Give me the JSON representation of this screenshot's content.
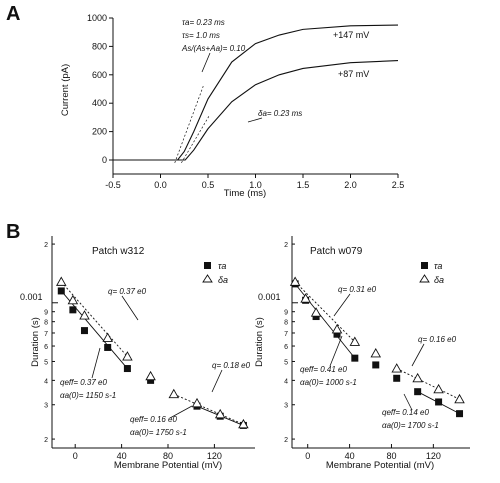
{
  "chart_data": [
    {
      "panel": "A",
      "type": "line",
      "xlabel": "Time (ms)",
      "ylabel": "Current (pA)",
      "xlim": [
        -0.5,
        2.5
      ],
      "ylim": [
        0,
        1000
      ],
      "x_ticks": [
        "-0.5",
        "0.0",
        "0.5",
        "1.0",
        "1.5",
        "2.0",
        "2.5"
      ],
      "y_ticks": [
        "0",
        "200",
        "400",
        "600",
        "800",
        "1000"
      ],
      "series": [
        {
          "name": "+147 mV",
          "x": [
            -0.5,
            0.0,
            0.18,
            0.25,
            0.35,
            0.5,
            0.75,
            1.0,
            1.25,
            1.5,
            2.0,
            2.5
          ],
          "values": [
            0,
            0,
            0,
            60,
            200,
            430,
            690,
            820,
            880,
            920,
            945,
            950
          ]
        },
        {
          "name": "+87 mV",
          "x": [
            -0.5,
            0.0,
            0.26,
            0.35,
            0.5,
            0.75,
            1.0,
            1.25,
            1.5,
            2.0,
            2.5
          ],
          "values": [
            0,
            0,
            0,
            70,
            220,
            410,
            530,
            600,
            645,
            685,
            700
          ]
        }
      ],
      "annotations": {
        "tau_a": "τa= 0.23 ms",
        "tau_s": "τs= 1.0 ms",
        "ratio": "As/(As+Aa)= 0.10",
        "delta": "δa= 0.23 ms"
      }
    },
    {
      "panel": "B",
      "title": "Patch w312",
      "type": "scatter",
      "xlabel": "Membrane Potential (mV)",
      "ylabel": "Duration (s)",
      "xlim": [
        -20,
        155
      ],
      "ylim_log": [
        0.00018,
        0.0022
      ],
      "x_ticks": [
        "0",
        "40",
        "80",
        "120"
      ],
      "y_label_major": "0.001",
      "legend": [
        "τa",
        "δa"
      ],
      "series": [
        {
          "name": "τa",
          "marker": "filled-square",
          "x": [
            -12,
            -2,
            8,
            28,
            45,
            65,
            105,
            125,
            145
          ],
          "values": [
            0.00115,
            0.00092,
            0.00072,
            0.00059,
            0.00046,
            0.0004,
            0.000295,
            0.000262,
            0.000235
          ]
        },
        {
          "name": "δa",
          "marker": "open-triangle",
          "x": [
            -12,
            -2,
            8,
            28,
            45,
            65,
            85,
            105,
            125,
            145
          ],
          "values": [
            0.00128,
            0.00103,
            0.00086,
            0.00066,
            0.00053,
            0.00042,
            0.00034,
            0.000305,
            0.000268,
            0.000238
          ]
        }
      ],
      "annotations": [
        "q= 0.37 e0",
        "qeff= 0.37 e0",
        "αa(0)= 1150 s-1",
        "q= 0.18 e0",
        "qeff= 0.16 e0",
        "αa(0)= 1750 s-1"
      ]
    },
    {
      "panel": "B",
      "title": "Patch w079",
      "type": "scatter",
      "xlabel": "Membrane Potential (mV)",
      "ylabel": "Duration (s)",
      "xlim": [
        -15,
        155
      ],
      "ylim_log": [
        0.00018,
        0.0022
      ],
      "x_ticks": [
        "0",
        "40",
        "80",
        "120"
      ],
      "y_label_major": "0.001",
      "legend": [
        "τa",
        "δa"
      ],
      "series": [
        {
          "name": "τa",
          "marker": "filled-square",
          "x": [
            -12,
            -2,
            8,
            28,
            45,
            65,
            85,
            105,
            125,
            145
          ],
          "values": [
            0.00125,
            0.00103,
            0.00085,
            0.00069,
            0.00052,
            0.00048,
            0.00041,
            0.00035,
            0.00031,
            0.00027
          ]
        },
        {
          "name": "δa",
          "marker": "open-triangle",
          "x": [
            -12,
            -2,
            8,
            28,
            45,
            65,
            85,
            105,
            125,
            145
          ],
          "values": [
            0.00128,
            0.00105,
            0.00089,
            0.00073,
            0.00063,
            0.00055,
            0.00046,
            0.00041,
            0.00036,
            0.00032
          ]
        }
      ],
      "annotations": [
        "q= 0.31 e0",
        "qeff= 0.41 e0",
        "αa(0)= 1000 s-1",
        "q= 0.16 e0",
        "qeff= 0.14 e0",
        "αa(0)= 1700 s-1"
      ]
    }
  ],
  "labels": {
    "panel_a": "A",
    "panel_b": "B",
    "label_147": "+147  mV",
    "label_87": "+87  mV"
  }
}
